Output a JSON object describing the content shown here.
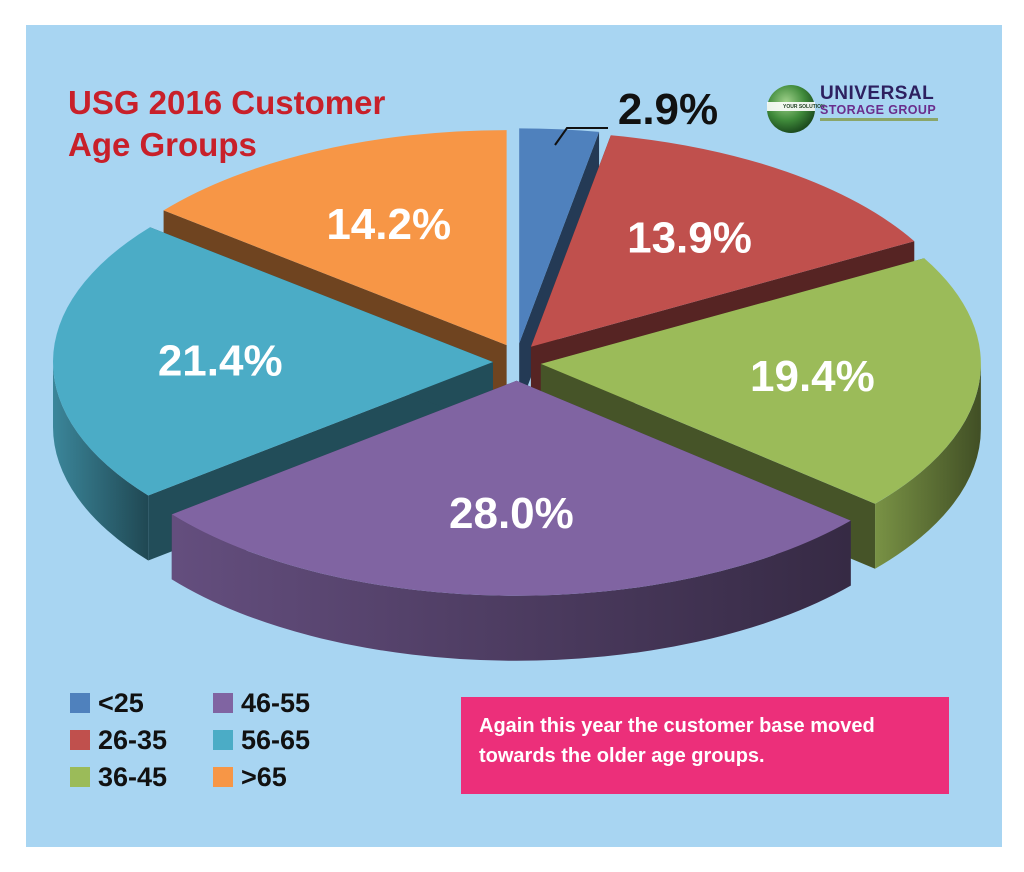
{
  "title": "USG 2016 Customer Age Groups",
  "logo": {
    "name_line1": "UNIVERSAL",
    "name_line2": "STORAGE GROUP",
    "tagline": "YOUR SOLUTION"
  },
  "note": "Again this year the customer base moved towards the older age groups.",
  "chart_data": {
    "type": "pie",
    "title": "USG 2016 Customer Age Groups",
    "slices": [
      {
        "label": "<25",
        "value": 2.9,
        "value_label": "2.9%",
        "color": "#4f81bd"
      },
      {
        "label": "26-35",
        "value": 13.9,
        "value_label": "13.9%",
        "color": "#c0504d"
      },
      {
        "label": "36-45",
        "value": 19.4,
        "value_label": "19.4%",
        "color": "#9bbb59"
      },
      {
        "label": "46-55",
        "value": 28.0,
        "value_label": "28.0%",
        "color": "#8064a2"
      },
      {
        "label": "56-65",
        "value": 21.4,
        "value_label": "21.4%",
        "color": "#4bacc6"
      },
      {
        "label": ">65",
        "value": 14.2,
        "value_label": "14.2%",
        "color": "#f79646"
      }
    ],
    "legend_position": "bottom-left",
    "exploded": true,
    "style": "3d"
  }
}
